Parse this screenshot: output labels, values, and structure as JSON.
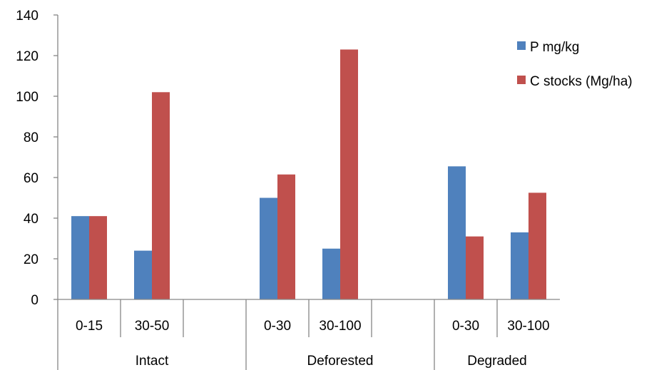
{
  "chart_data": {
    "type": "bar",
    "title": "",
    "xlabel": "",
    "ylabel": "",
    "ylim": [
      0,
      140
    ],
    "y_ticks": [
      "0",
      "20",
      "40",
      "60",
      "80",
      "100",
      "120",
      "140"
    ],
    "grid": false,
    "legend_position": "right",
    "groups": [
      {
        "label": "Intact",
        "categories": [
          "0-15",
          "30-50",
          ""
        ]
      },
      {
        "label": "Deforested",
        "categories": [
          "0-30",
          "30-100",
          ""
        ]
      },
      {
        "label": "Degraded",
        "categories": [
          "0-30",
          "30-100"
        ]
      }
    ],
    "categories": [
      "0-15",
      "30-50",
      "",
      "0-30",
      "30-100",
      "",
      "0-30",
      "30-100"
    ],
    "series": [
      {
        "name": "P mg/kg",
        "color": "#4F81BD",
        "values": [
          41,
          24,
          null,
          50,
          25,
          null,
          65.5,
          33
        ]
      },
      {
        "name": "C stocks (Mg/ha)",
        "color": "#C0504D",
        "values": [
          41,
          102,
          null,
          61.5,
          123,
          null,
          31,
          52.5
        ]
      }
    ]
  }
}
